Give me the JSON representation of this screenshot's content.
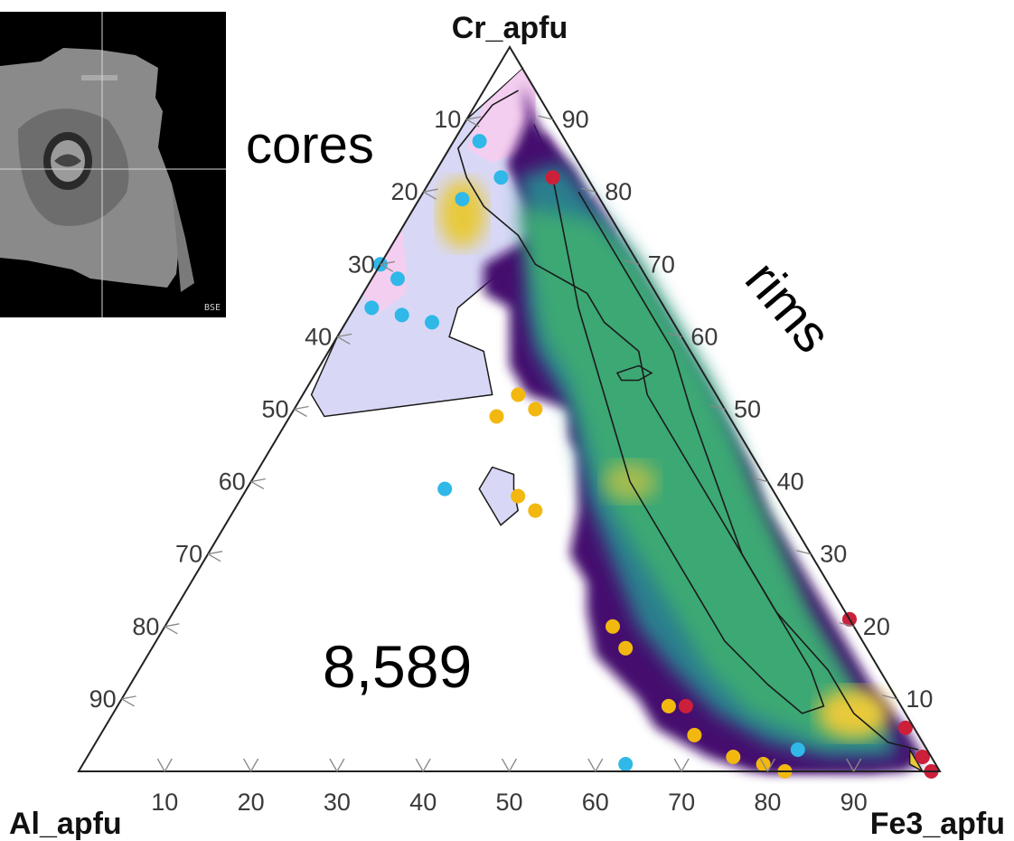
{
  "chart_data": {
    "type": "ternary-density",
    "vertices": {
      "top": "Cr_apfu",
      "left": "Al_apfu",
      "right": "Fe3_apfu"
    },
    "tick_values": [
      10,
      20,
      30,
      40,
      50,
      60,
      70,
      80,
      90
    ],
    "annotations": {
      "cores_label": "cores",
      "rims_label": "rims",
      "count_label": "8,589"
    },
    "inset": {
      "label": "BSE"
    },
    "points": {
      "cores_blue": [
        {
          "cr": 87,
          "fe": 3
        },
        {
          "cr": 82,
          "fe": 8
        },
        {
          "cr": 79,
          "fe": 5
        },
        {
          "cr": 70,
          "fe": 0
        },
        {
          "cr": 68,
          "fe": 3
        },
        {
          "cr": 64,
          "fe": 2
        },
        {
          "cr": 63,
          "fe": 6
        },
        {
          "cr": 62,
          "fe": 10
        },
        {
          "cr": 39,
          "fe": 23
        },
        {
          "cr": 1,
          "fe": 63
        },
        {
          "cr": 3,
          "fe": 82
        }
      ],
      "rim_yellow": [
        {
          "cr": 52,
          "fe": 25
        },
        {
          "cr": 50,
          "fe": 28
        },
        {
          "cr": 49,
          "fe": 24
        },
        {
          "cr": 38,
          "fe": 32
        },
        {
          "cr": 36,
          "fe": 35
        },
        {
          "cr": 20,
          "fe": 52
        },
        {
          "cr": 17,
          "fe": 55
        },
        {
          "cr": 9,
          "fe": 64
        },
        {
          "cr": 5,
          "fe": 69
        },
        {
          "cr": 2,
          "fe": 75
        },
        {
          "cr": 1,
          "fe": 79
        },
        {
          "cr": 0,
          "fe": 82
        }
      ],
      "rim_red": [
        {
          "cr": 82,
          "fe": 14
        },
        {
          "cr": 21,
          "fe": 79
        },
        {
          "cr": 6,
          "fe": 93
        },
        {
          "cr": 2,
          "fe": 97
        },
        {
          "cr": 0,
          "fe": 99
        },
        {
          "cr": 9,
          "fe": 66
        }
      ]
    },
    "colors": {
      "blue_points": "#2fb8e8",
      "yellow_points": "#f2b80f",
      "red_points": "#cc1f3a",
      "contour_fill": "#d8d8f6",
      "pink_fill": "#f4cef0",
      "dark_purple": "#45106e",
      "teal": "#2a7f8e",
      "green": "#3fb070",
      "yellow_high": "#e8c93a"
    }
  }
}
